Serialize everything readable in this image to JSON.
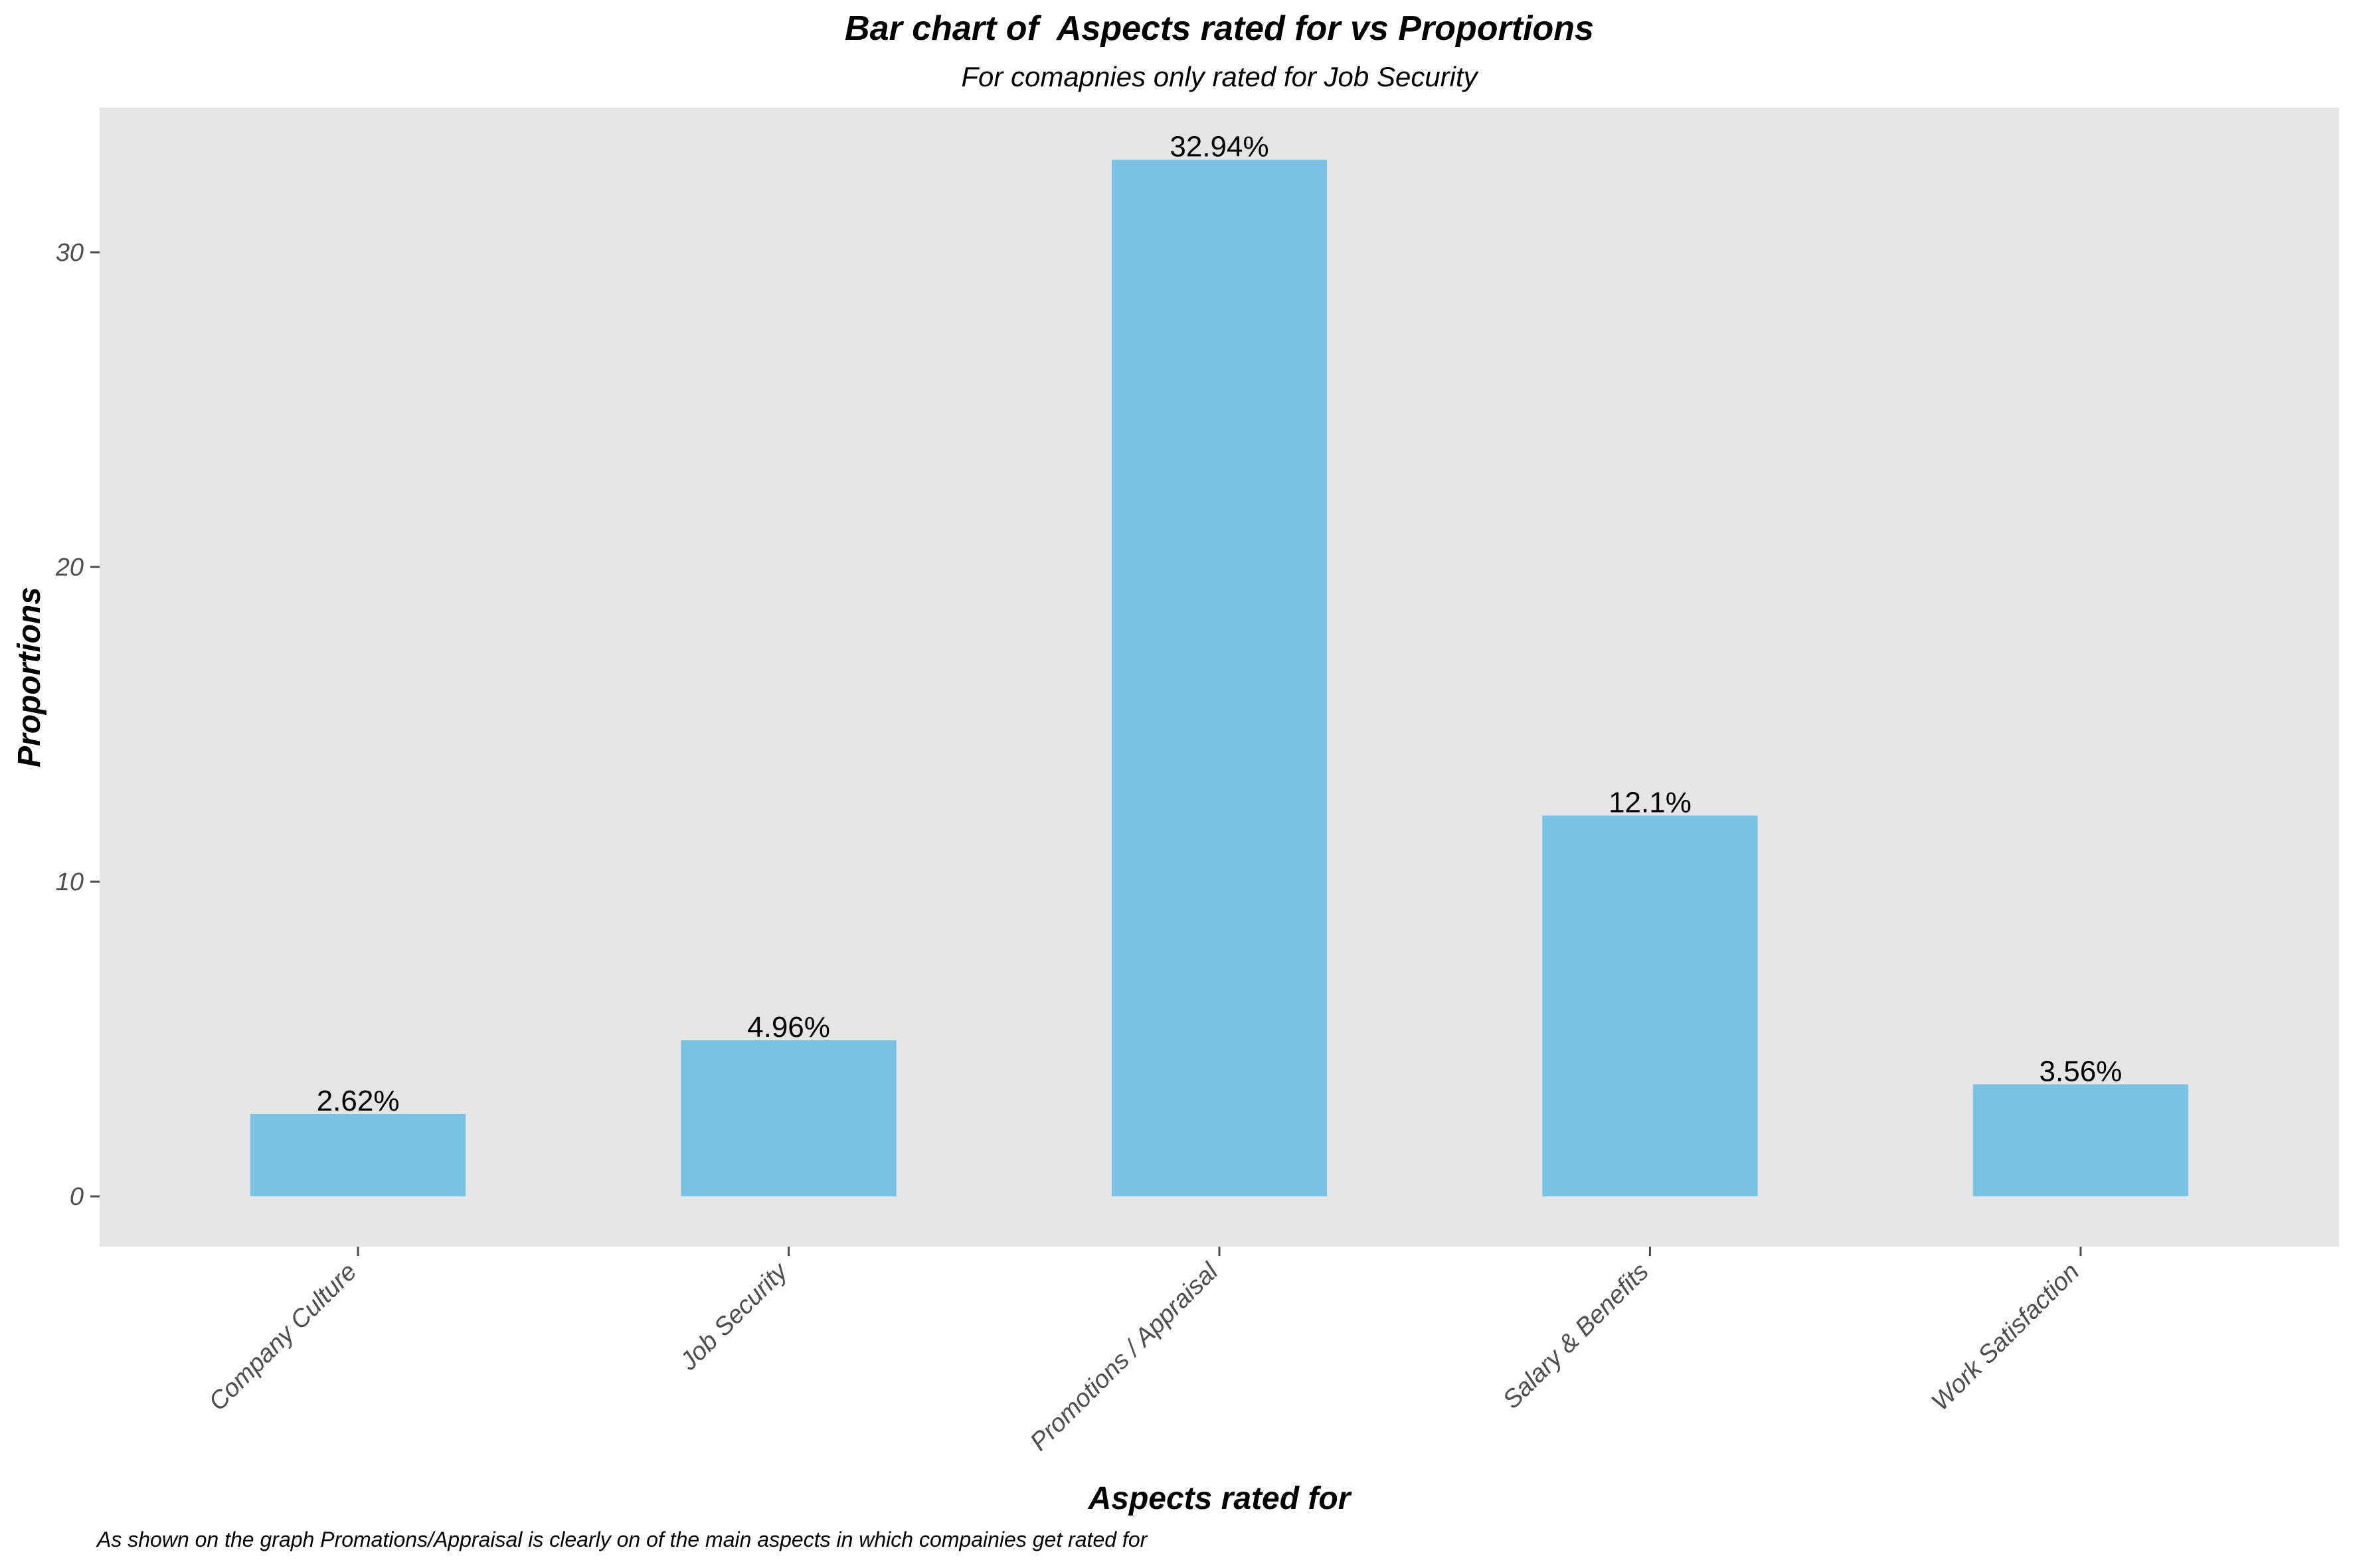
{
  "chart_data": {
    "type": "bar",
    "title": "Bar chart of  Aspects rated for vs Proportions",
    "subtitle": "For comapnies only rated for Job Security",
    "xlabel": "Aspects rated for",
    "ylabel": "Proportions",
    "caption": "As shown on the graph Promations/Appraisal is clearly on of the main aspects in which compainies get rated for",
    "categories": [
      "Company Culture",
      "Job Security",
      "Promotions / Appraisal",
      "Salary & Benefits",
      "Work Satisfaction"
    ],
    "values": [
      2.62,
      4.96,
      32.94,
      12.1,
      3.56
    ],
    "data_labels": [
      "2.62%",
      "4.96%",
      "32.94%",
      "12.1%",
      "3.56%"
    ],
    "ylim": [
      -1.6,
      34.6
    ],
    "yticks": [
      0,
      10,
      20,
      30
    ],
    "grid": false,
    "legend": "none",
    "colors": {
      "bar": "#7AC2E4",
      "panel": "#E5E5E5",
      "tick": "#4d4d4d"
    }
  }
}
